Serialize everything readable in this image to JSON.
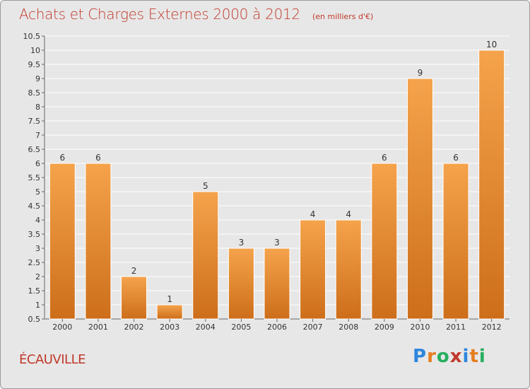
{
  "title": "Achats et Charges Externes 2000 à 2012",
  "subtitle": "(en milliers d'€)",
  "place_name": "ÉCAUVILLE",
  "logo": {
    "letters": [
      "P",
      "r",
      "o",
      "x",
      "i",
      "t",
      "i"
    ],
    "colors": [
      "#2e86de",
      "#e67e22",
      "#27ae60",
      "#c0392b",
      "#2e86de",
      "#e67e22",
      "#27ae60"
    ]
  },
  "colors": {
    "bar_top": "#f5a34c",
    "bar_bottom": "#cd6e1a",
    "bar_stroke": "#ffffff",
    "title": "#c0392b",
    "grid": "#ffffff"
  },
  "chart_data": {
    "type": "bar",
    "categories": [
      "2000",
      "2001",
      "2002",
      "2003",
      "2004",
      "2005",
      "2006",
      "2007",
      "2008",
      "2009",
      "2010",
      "2011",
      "2012"
    ],
    "values": [
      6,
      6,
      2,
      1,
      5,
      3,
      3,
      4,
      4,
      6,
      9,
      6,
      10
    ],
    "ylim": [
      0.5,
      10.5
    ],
    "yticks": [
      "0.5",
      "1",
      "1.5",
      "2",
      "2.5",
      "3",
      "3.5",
      "4",
      "4.5",
      "5",
      "5.5",
      "6",
      "6.5",
      "7",
      "7.5",
      "8",
      "8.5",
      "9",
      "9.5",
      "10",
      "10.5"
    ],
    "grid": true,
    "xlabel": "",
    "ylabel": ""
  }
}
